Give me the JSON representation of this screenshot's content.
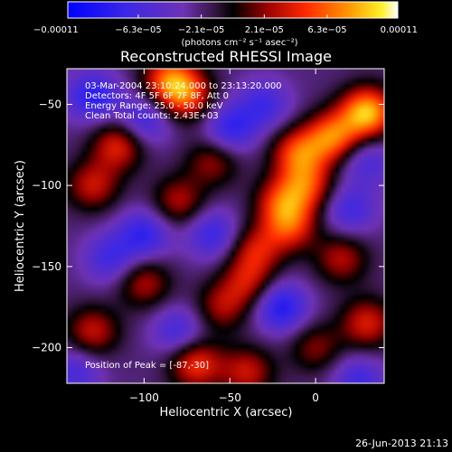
{
  "chart_data": {
    "type": "heatmap",
    "title": "Reconstructed RHESSI Image",
    "xlabel": "Heliocentric X (arcsec)",
    "ylabel": "Heliocentric Y (arcsec)",
    "xlim": [
      -145,
      40
    ],
    "ylim": [
      -222,
      -28
    ],
    "xticks": [
      -100,
      -50,
      0
    ],
    "yticks": [
      -50,
      -100,
      -150,
      -200
    ],
    "xtick_labels": [
      "−100",
      "−50",
      "0"
    ],
    "ytick_labels": [
      "−50",
      "−100",
      "−150",
      "−200"
    ],
    "colorbar": {
      "min": -0.00011,
      "max": 0.00011,
      "tick_values": [
        -0.00011,
        -6.3e-05,
        -2.1e-05,
        2.1e-05,
        6.3e-05,
        0.00011
      ],
      "tick_labels": [
        "−0.00011",
        "−6.3e−05",
        "−2.1e−05",
        "2.1e−05",
        "6.3e−05",
        "0.00011"
      ],
      "unit_label": "(photons cm⁻² s⁻¹ asec⁻²)"
    },
    "info_lines": [
      "03-Mar-2004 23:10:24.000 to 23:13:20.000",
      "Detectors: 4F 5F 6F 7F 8F, Att 0",
      "Energy Range: 25.0 - 50.0 keV",
      "Clean    Total counts: 2.43E+03"
    ],
    "annotation": "Position of Peak = [-87,-30]",
    "blobs": [
      {
        "x": 30,
        "y": -55,
        "v": 0.00011
      },
      {
        "x": 10,
        "y": -70,
        "v": 8.5e-05
      },
      {
        "x": -10,
        "y": -80,
        "v": 7.5e-05
      },
      {
        "x": -5,
        "y": -100,
        "v": 6.5e-05
      },
      {
        "x": -20,
        "y": -110,
        "v": 6e-05
      },
      {
        "x": -15,
        "y": -125,
        "v": 6.5e-05
      },
      {
        "x": -35,
        "y": -140,
        "v": 5.5e-05
      },
      {
        "x": -40,
        "y": -160,
        "v": 5e-05
      },
      {
        "x": -55,
        "y": -175,
        "v": 4.5e-05
      },
      {
        "x": -85,
        "y": -35,
        "v": 8e-05
      },
      {
        "x": -75,
        "y": -45,
        "v": 6.5e-05
      },
      {
        "x": -115,
        "y": -75,
        "v": 6.5e-05
      },
      {
        "x": -130,
        "y": -100,
        "v": 5.5e-05
      },
      {
        "x": -80,
        "y": -110,
        "v": 5e-05
      },
      {
        "x": -60,
        "y": -85,
        "v": 4.5e-05
      },
      {
        "x": -100,
        "y": -160,
        "v": 5e-05
      },
      {
        "x": -130,
        "y": -190,
        "v": 5.5e-05
      },
      {
        "x": -70,
        "y": -210,
        "v": 7e-05
      },
      {
        "x": -40,
        "y": -215,
        "v": 5.5e-05
      },
      {
        "x": 15,
        "y": -145,
        "v": 5e-05
      },
      {
        "x": 30,
        "y": -185,
        "v": 6e-05
      },
      {
        "x": 0,
        "y": -200,
        "v": 4e-05
      },
      {
        "x": -130,
        "y": -45,
        "v": -6e-05
      },
      {
        "x": -100,
        "y": -60,
        "v": -5e-05
      },
      {
        "x": -50,
        "y": -65,
        "v": -5.5e-05
      },
      {
        "x": -30,
        "y": -50,
        "v": -4.5e-05
      },
      {
        "x": -100,
        "y": -130,
        "v": -5.5e-05
      },
      {
        "x": -60,
        "y": -130,
        "v": -5e-05
      },
      {
        "x": -120,
        "y": -145,
        "v": -4.5e-05
      },
      {
        "x": -80,
        "y": -190,
        "v": -4.5e-05
      },
      {
        "x": -20,
        "y": -175,
        "v": -6.5e-05
      },
      {
        "x": 20,
        "y": -115,
        "v": -4.5e-05
      },
      {
        "x": 30,
        "y": -85,
        "v": -4e-05
      },
      {
        "x": 25,
        "y": -220,
        "v": -4.5e-05
      },
      {
        "x": -140,
        "y": -215,
        "v": -4e-05
      }
    ]
  },
  "footer": {
    "timestamp": "26-Jun-2013 21:13"
  }
}
